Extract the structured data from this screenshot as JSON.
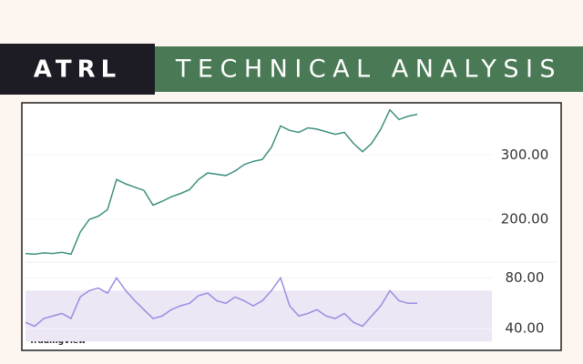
{
  "header": {
    "ticker": "ATRL",
    "title": "TECHNICAL ANALYSIS"
  },
  "chart_data": [
    {
      "type": "line",
      "color": "#3d8f7e",
      "values": [
        147,
        146,
        148,
        147,
        149,
        146,
        180,
        200,
        205,
        215,
        262,
        255,
        250,
        245,
        222,
        228,
        235,
        240,
        246,
        262,
        272,
        270,
        268,
        275,
        285,
        290,
        293,
        312,
        345,
        338,
        335,
        342,
        340,
        336,
        332,
        335,
        318,
        305,
        318,
        340,
        370,
        355,
        360,
        363
      ],
      "ylim": [
        138,
        378
      ],
      "yticks": [
        {
          "value": 300,
          "label": "300.00"
        },
        {
          "value": 200,
          "label": "200.00"
        }
      ]
    },
    {
      "type": "line",
      "color": "#9c8ce0",
      "values": [
        45,
        42,
        48,
        50,
        52,
        48,
        65,
        70,
        72,
        68,
        80,
        70,
        62,
        55,
        48,
        50,
        55,
        58,
        60,
        66,
        68,
        62,
        60,
        65,
        62,
        58,
        62,
        70,
        80,
        58,
        50,
        52,
        55,
        50,
        48,
        52,
        45,
        42,
        50,
        58,
        70,
        62,
        60,
        60
      ],
      "ylim": [
        28,
        91
      ],
      "band": [
        30,
        70
      ],
      "yticks": [
        {
          "value": 80,
          "label": "80.00"
        },
        {
          "value": 40,
          "label": "40.00"
        }
      ]
    }
  ],
  "footer": {
    "brand": "TradingView"
  }
}
